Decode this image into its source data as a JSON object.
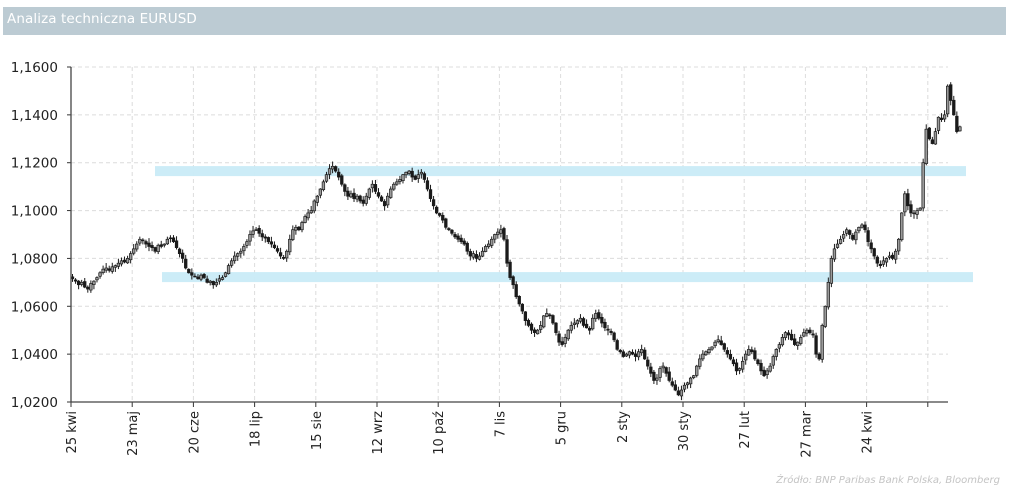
{
  "header": {
    "title": "Analiza techniczna EURUSD"
  },
  "footer": {
    "source": "Źródło: BNP Paribas Bank Polska, Bloomberg"
  },
  "colors": {
    "title_bg": "#bccbd3",
    "band": "#c9ebf7",
    "candle": "#1a1a1a",
    "grid": "#dcdcdc"
  },
  "chart_data": {
    "type": "candlestick",
    "title": "Analiza techniczna EURUSD",
    "xlabel": "",
    "ylabel": "",
    "ylim": [
      1.02,
      1.16
    ],
    "yticks": [
      "1,1600",
      "1,1400",
      "1,1200",
      "1,1000",
      "1,0800",
      "1,0600",
      "1,0400",
      "1,0200"
    ],
    "ytick_values": [
      1.16,
      1.14,
      1.12,
      1.1,
      1.08,
      1.06,
      1.04,
      1.02
    ],
    "xticks": [
      "25 kwi",
      "23 maj",
      "20 cze",
      "18 lip",
      "15 sie",
      "12 wrz",
      "10 paź",
      "7 lis",
      "5 gru",
      "2 sty",
      "30 sty",
      "27 lut",
      "27 mar",
      "24 kwi",
      ""
    ],
    "grid": true,
    "bands": [
      {
        "label": "resistance",
        "value": 1.1165,
        "x_start_day": 28,
        "x_end_day": 293
      },
      {
        "label": "support",
        "value": 1.0722,
        "x_start_day": 30,
        "x_end_day": 296
      }
    ],
    "closes": [
      1.0715,
      1.0705,
      1.069,
      1.07,
      1.068,
      1.0672,
      1.0695,
      1.0705,
      1.072,
      1.074,
      1.0755,
      1.076,
      1.075,
      1.0765,
      1.077,
      1.078,
      1.079,
      1.0785,
      1.08,
      1.082,
      1.084,
      1.086,
      1.088,
      1.0875,
      1.086,
      1.085,
      1.0845,
      1.083,
      1.0855,
      1.085,
      1.086,
      1.088,
      1.0885,
      1.087,
      1.0845,
      1.082,
      1.08,
      1.076,
      1.074,
      1.073,
      1.0725,
      1.0715,
      1.073,
      1.072,
      1.07,
      1.0705,
      1.069,
      1.07,
      1.0715,
      1.072,
      1.074,
      1.077,
      1.079,
      1.081,
      1.082,
      1.083,
      1.085,
      1.087,
      1.09,
      1.0915,
      1.092,
      1.0905,
      1.089,
      1.0885,
      1.087,
      1.086,
      1.0845,
      1.083,
      1.081,
      1.08,
      1.083,
      1.088,
      1.092,
      1.093,
      1.092,
      1.095,
      1.0975,
      1.099,
      1.1,
      1.104,
      1.106,
      1.109,
      1.112,
      1.115,
      1.1175,
      1.1185,
      1.1165,
      1.114,
      1.111,
      1.108,
      1.106,
      1.107,
      1.105,
      1.106,
      1.104,
      1.103,
      1.106,
      1.109,
      1.111,
      1.108,
      1.106,
      1.104,
      1.102,
      1.106,
      1.109,
      1.111,
      1.112,
      1.113,
      1.115,
      1.116,
      1.1165,
      1.114,
      1.113,
      1.115,
      1.116,
      1.113,
      1.109,
      1.105,
      1.102,
      1.099,
      1.098,
      1.096,
      1.093,
      1.092,
      1.0905,
      1.089,
      1.088,
      1.087,
      1.086,
      1.083,
      1.081,
      1.082,
      1.08,
      1.081,
      1.083,
      1.085,
      1.086,
      1.088,
      1.09,
      1.091,
      1.092,
      1.088,
      1.078,
      1.072,
      1.069,
      1.064,
      1.061,
      1.058,
      1.054,
      1.052,
      1.05,
      1.049,
      1.05,
      1.052,
      1.056,
      1.057,
      1.056,
      1.053,
      1.049,
      1.045,
      1.044,
      1.047,
      1.05,
      1.052,
      1.053,
      1.054,
      1.055,
      1.052,
      1.051,
      1.05,
      1.055,
      1.057,
      1.055,
      1.053,
      1.051,
      1.05,
      1.049,
      1.046,
      1.042,
      1.041,
      1.039,
      1.04,
      1.041,
      1.04,
      1.039,
      1.041,
      1.042,
      1.038,
      1.035,
      1.032,
      1.029,
      1.03,
      1.034,
      1.035,
      1.032,
      1.029,
      1.027,
      1.025,
      1.023,
      1.025,
      1.027,
      1.028,
      1.03,
      1.031,
      1.035,
      1.038,
      1.04,
      1.041,
      1.042,
      1.043,
      1.045,
      1.046,
      1.044,
      1.042,
      1.04,
      1.038,
      1.036,
      1.033,
      1.034,
      1.037,
      1.04,
      1.042,
      1.041,
      1.038,
      1.036,
      1.033,
      1.031,
      1.033,
      1.035,
      1.039,
      1.042,
      1.044,
      1.047,
      1.049,
      1.048,
      1.046,
      1.044,
      1.045,
      1.047,
      1.049,
      1.05,
      1.049,
      1.048,
      1.04,
      1.038,
      1.052,
      1.06,
      1.07,
      1.08,
      1.084,
      1.086,
      1.088,
      1.09,
      1.092,
      1.09,
      1.088,
      1.091,
      1.093,
      1.094,
      1.092,
      1.087,
      1.084,
      1.081,
      1.078,
      1.077,
      1.079,
      1.08,
      1.081,
      1.08,
      1.083,
      1.088,
      1.099,
      1.107,
      1.102,
      1.099,
      1.099,
      1.1,
      1.101,
      1.12,
      1.134,
      1.13,
      1.128,
      1.133,
      1.139,
      1.138,
      1.14,
      1.152,
      1.146,
      1.14,
      1.133,
      1.135
    ]
  }
}
